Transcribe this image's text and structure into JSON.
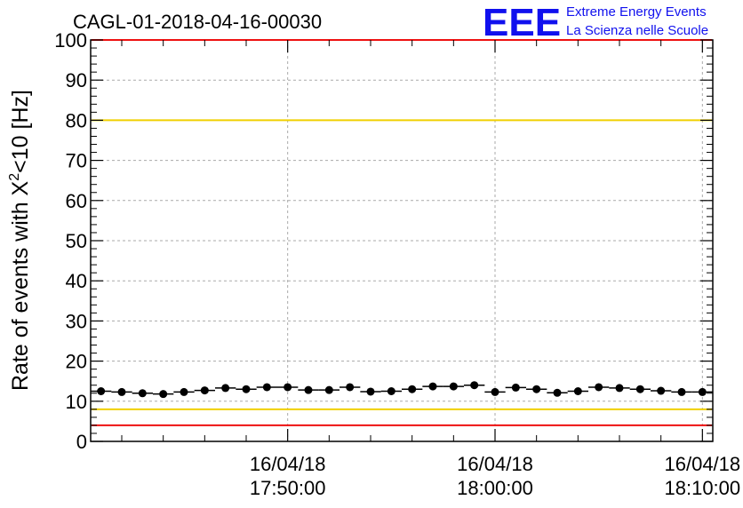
{
  "header": {
    "run_title": "CAGL-01-2018-04-16-00030",
    "logo_text": "EEE",
    "logo_line1": "Extreme Energy Events",
    "logo_line2": "La Scienza nelle Scuole"
  },
  "chart_data": {
    "type": "scatter",
    "ylabel": "Rate of events with X²<10 [Hz]",
    "ylabel_parts": {
      "pre": "Rate of events with X",
      "sup": "2",
      "post": "<10 [Hz]"
    },
    "xlabel": "",
    "ylim": [
      0,
      100
    ],
    "y_ticks": [
      "0",
      "10",
      "20",
      "30",
      "40",
      "50",
      "60",
      "70",
      "80",
      "90",
      "100"
    ],
    "xlim_minutes": [
      -9.5,
      20.5
    ],
    "x_ticks": [
      {
        "date": "16/04/18",
        "time": "17:50:00",
        "minutes": 0
      },
      {
        "date": "16/04/18",
        "time": "18:00:00",
        "minutes": 10
      },
      {
        "date": "16/04/18",
        "time": "18:10:00",
        "minutes": 20
      }
    ],
    "grid": true,
    "reference_lines": [
      {
        "y": 80,
        "color": "#f0d000"
      },
      {
        "y": 8,
        "color": "#f0d000"
      },
      {
        "y": 4,
        "color": "#ee1111"
      },
      {
        "y": 100,
        "color": "#ee1111"
      }
    ],
    "series": [
      {
        "color": "#000000",
        "x": [
          "17:41:00",
          "17:42:00",
          "17:43:00",
          "17:44:00",
          "17:45:00",
          "17:46:00",
          "17:47:00",
          "17:48:00",
          "17:49:00",
          "17:50:00",
          "17:51:00",
          "17:52:00",
          "17:53:00",
          "17:54:00",
          "17:55:00",
          "17:56:00",
          "17:57:00",
          "17:58:00",
          "17:59:00",
          "18:00:00",
          "18:01:00",
          "18:02:00",
          "18:03:00",
          "18:04:00",
          "18:05:00",
          "18:06:00",
          "18:07:00",
          "18:08:00",
          "18:09:00",
          "18:10:00"
        ],
        "y": [
          12.5,
          12.3,
          12.0,
          11.8,
          12.3,
          12.7,
          13.3,
          13.0,
          13.5,
          13.5,
          12.8,
          12.8,
          13.5,
          12.4,
          12.5,
          13.0,
          13.7,
          13.7,
          14.0,
          12.3,
          13.4,
          13.0,
          12.1,
          12.5,
          13.5,
          13.3,
          13.0,
          12.6,
          12.3,
          12.3
        ]
      }
    ]
  }
}
